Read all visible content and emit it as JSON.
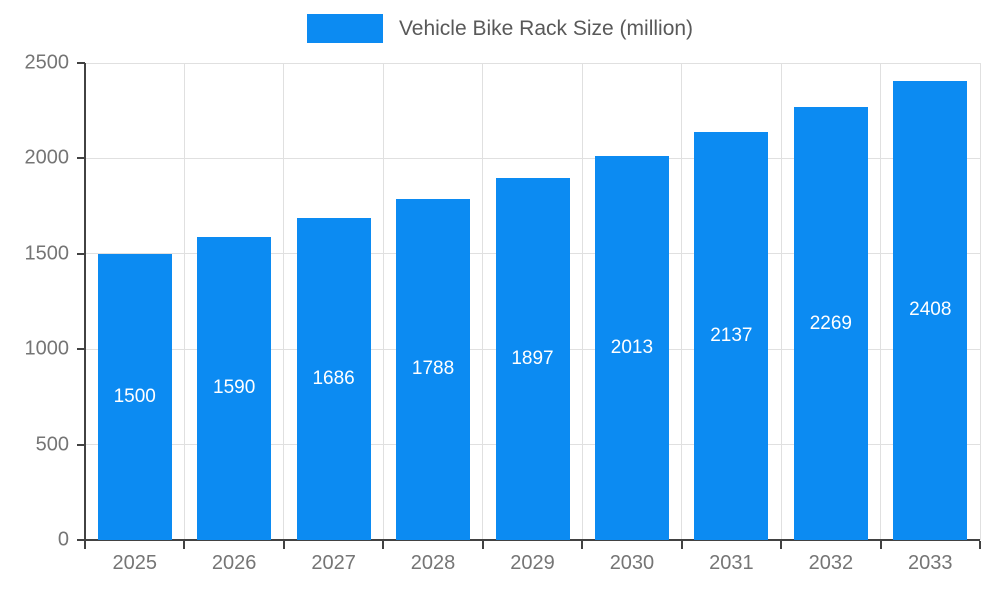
{
  "legend": {
    "label": "Vehicle Bike Rack Size (million)"
  },
  "colors": {
    "bar": "#0c8bf2",
    "grid": "#e0e0e0",
    "axis": "#424242",
    "tick_label": "#757575",
    "legend_text": "#595959",
    "bar_value_label": "#ffffff",
    "background": "#ffffff"
  },
  "chart_data": {
    "type": "bar",
    "title": "Vehicle Bike Rack Size (million)",
    "categories": [
      "2025",
      "2026",
      "2027",
      "2028",
      "2029",
      "2030",
      "2031",
      "2032",
      "2033"
    ],
    "values": [
      1500,
      1590,
      1686,
      1788,
      1897,
      2013,
      2137,
      2269,
      2408
    ],
    "xlabel": "",
    "ylabel": "",
    "ylim": [
      0,
      2500
    ],
    "yticks": [
      0,
      500,
      1000,
      1500,
      2000,
      2500
    ],
    "grid": true,
    "legend_position": "top-center",
    "value_labels": "inside-center"
  }
}
